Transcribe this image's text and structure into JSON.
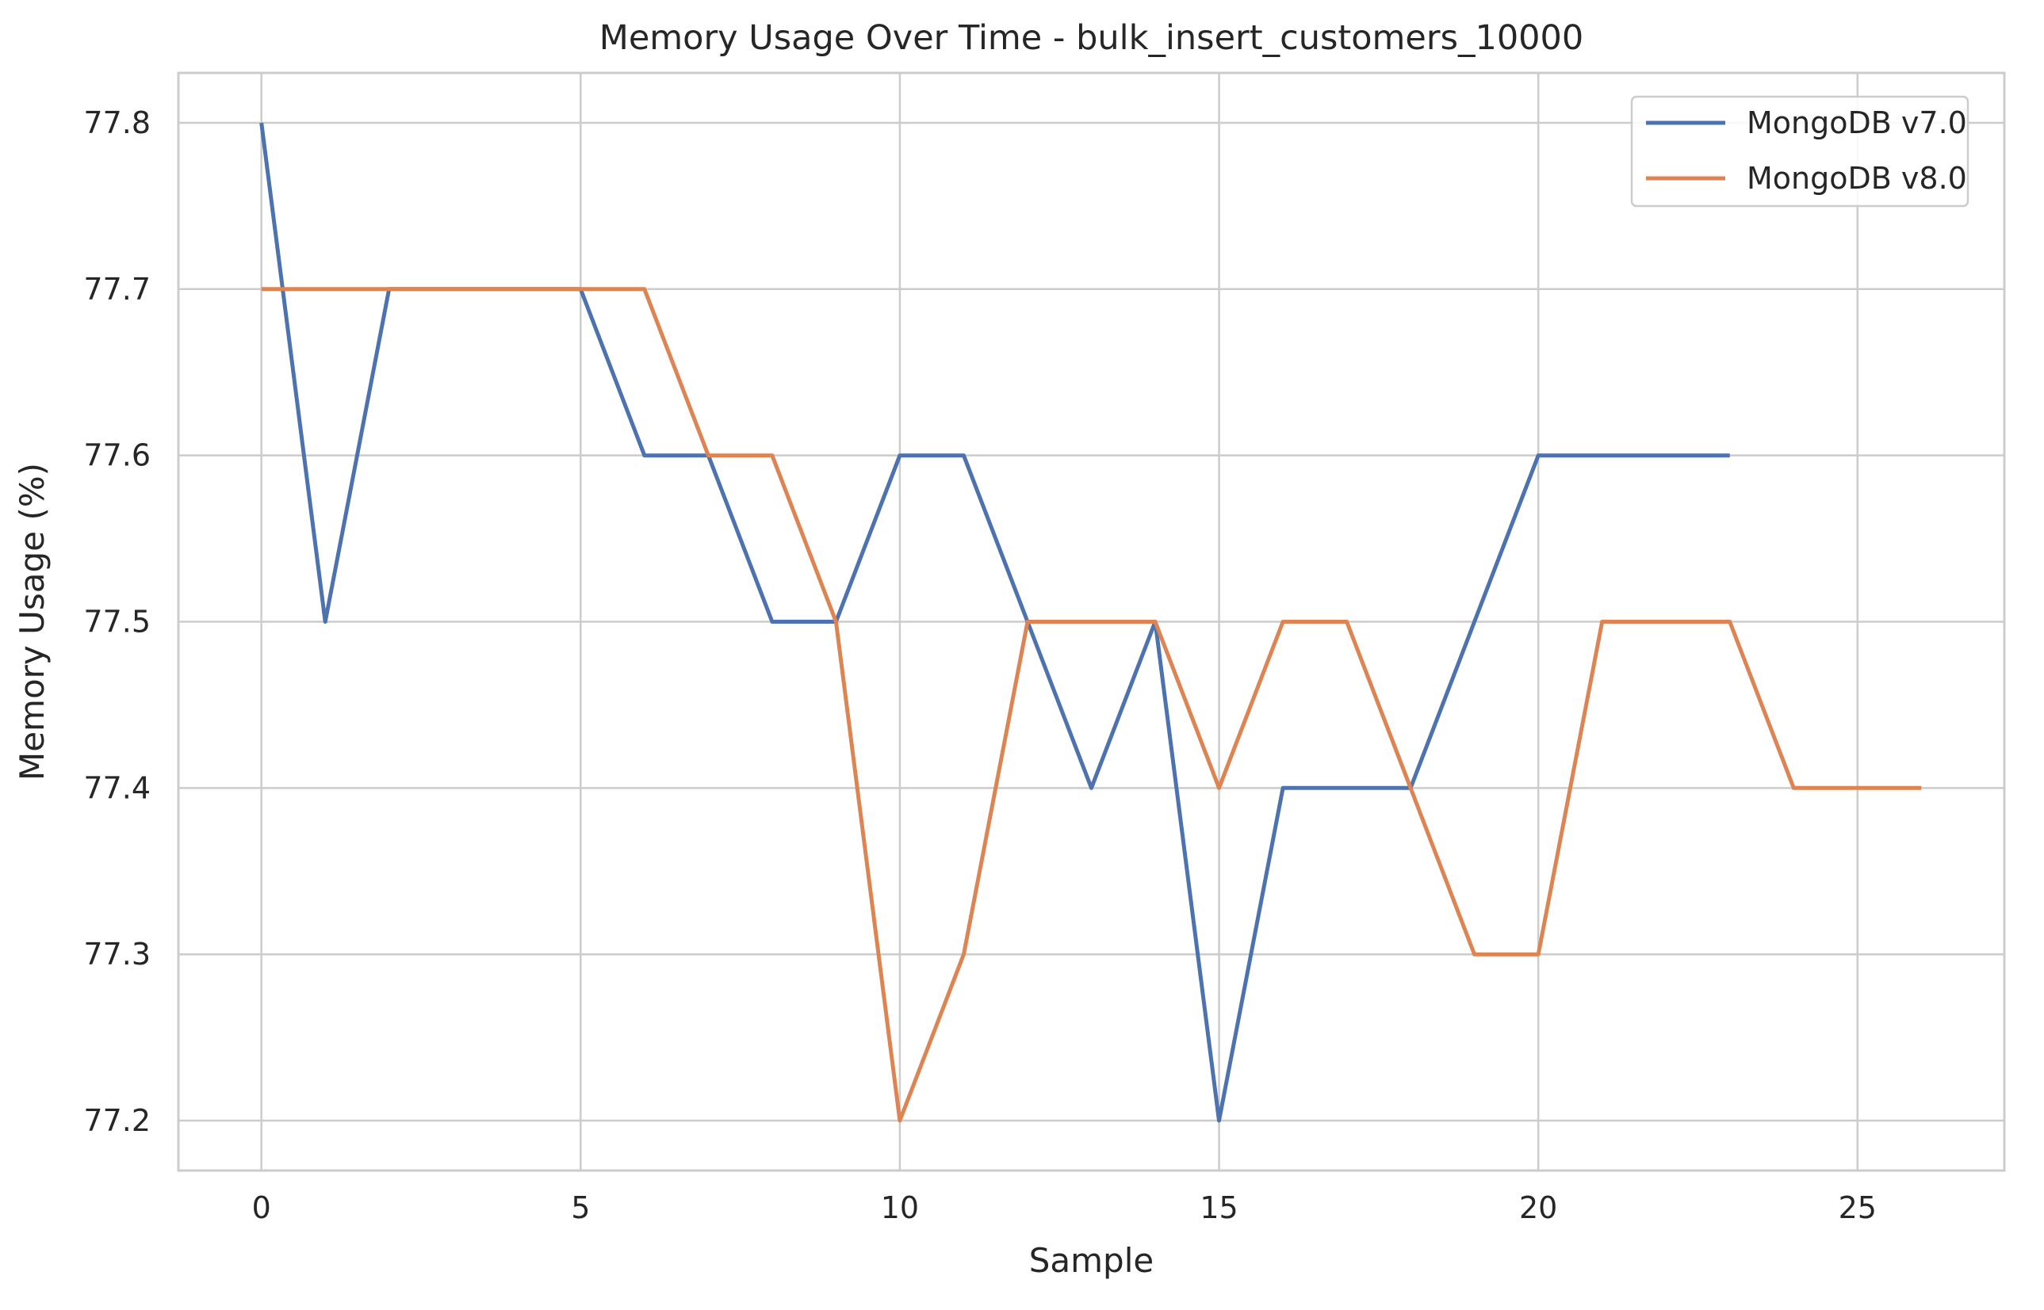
{
  "chart_data": {
    "type": "line",
    "title": "Memory Usage Over Time - bulk_insert_customers_10000",
    "xlabel": "Sample",
    "ylabel": "Memory Usage (%)",
    "xlim": [
      -1.3,
      27.3
    ],
    "ylim": [
      77.17,
      77.83
    ],
    "xticks": [
      0,
      5,
      10,
      15,
      20,
      25
    ],
    "xtick_labels": [
      "0",
      "5",
      "10",
      "15",
      "20",
      "25"
    ],
    "yticks": [
      77.2,
      77.3,
      77.4,
      77.5,
      77.6,
      77.7,
      77.8
    ],
    "ytick_labels": [
      "77.2",
      "77.3",
      "77.4",
      "77.5",
      "77.6",
      "77.7",
      "77.8"
    ],
    "grid": true,
    "legend_position": "top-right",
    "series": [
      {
        "name": "MongoDB v7.0",
        "color": "#4c72b0",
        "x": [
          0,
          1,
          2,
          3,
          4,
          5,
          6,
          7,
          8,
          9,
          10,
          11,
          12,
          13,
          14,
          15,
          16,
          17,
          18,
          19,
          20,
          21,
          22,
          23
        ],
        "values": [
          77.8,
          77.5,
          77.7,
          77.7,
          77.7,
          77.7,
          77.6,
          77.6,
          77.5,
          77.5,
          77.6,
          77.6,
          77.5,
          77.4,
          77.5,
          77.2,
          77.4,
          77.4,
          77.4,
          77.5,
          77.6,
          77.6,
          77.6,
          77.6
        ]
      },
      {
        "name": "MongoDB v8.0",
        "color": "#dd8452",
        "x": [
          0,
          1,
          2,
          3,
          4,
          5,
          6,
          7,
          8,
          9,
          10,
          11,
          12,
          13,
          14,
          15,
          16,
          17,
          18,
          19,
          20,
          21,
          22,
          23,
          24,
          25,
          26
        ],
        "values": [
          77.7,
          77.7,
          77.7,
          77.7,
          77.7,
          77.7,
          77.7,
          77.6,
          77.6,
          77.5,
          77.2,
          77.3,
          77.5,
          77.5,
          77.5,
          77.4,
          77.5,
          77.5,
          77.4,
          77.3,
          77.3,
          77.5,
          77.5,
          77.5,
          77.4,
          77.4,
          77.4
        ]
      }
    ]
  }
}
